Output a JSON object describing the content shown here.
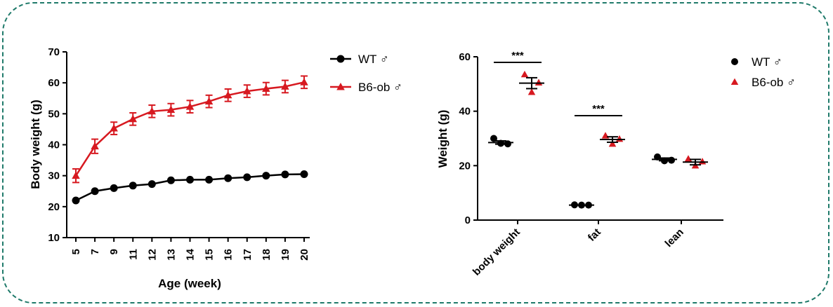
{
  "chart_data": [
    {
      "type": "line",
      "xlabel": "Age (week)",
      "ylabel": "Body weight (g)",
      "categories": [
        "5",
        "7",
        "9",
        "11",
        "12",
        "13",
        "14",
        "15",
        "16",
        "17",
        "18",
        "19",
        "20"
      ],
      "ylim": [
        10,
        70
      ],
      "yticks": [
        "10",
        "20",
        "30",
        "40",
        "50",
        "60",
        "70"
      ],
      "legend_position": "top-right",
      "series": [
        {
          "name": "WT ♂",
          "color": "#000000",
          "marker": "circle",
          "values": [
            22.0,
            25.0,
            26.0,
            26.8,
            27.3,
            28.5,
            28.7,
            28.7,
            29.2,
            29.5,
            30.0,
            30.4,
            30.5
          ],
          "errors": [
            0.5,
            0.6,
            0.6,
            0.6,
            0.6,
            0.6,
            0.6,
            0.6,
            0.6,
            0.6,
            0.6,
            0.6,
            0.6
          ]
        },
        {
          "name": "B6-ob ♂",
          "color": "#d71920",
          "marker": "triangle",
          "values": [
            30.0,
            39.5,
            45.3,
            48.3,
            50.8,
            51.3,
            52.3,
            54.0,
            56.0,
            57.3,
            58.1,
            58.8,
            60.2
          ],
          "errors": [
            2.2,
            2.3,
            2.0,
            2.0,
            2.0,
            2.0,
            2.0,
            2.0,
            2.0,
            2.0,
            2.0,
            2.0,
            2.0
          ]
        }
      ]
    },
    {
      "type": "scatter",
      "xlabel": "",
      "ylabel": "Weight (g)",
      "categories": [
        "body weight",
        "fat",
        "lean"
      ],
      "ylim": [
        0,
        60
      ],
      "yticks": [
        "0",
        "20",
        "40",
        "60"
      ],
      "legend_position": "top-right",
      "series": [
        {
          "name": "WT ♂",
          "color": "#000000",
          "marker": "circle",
          "points": [
            [
              30.0,
              28.2,
              28.0
            ],
            [
              5.6,
              5.5,
              5.5
            ],
            [
              23.2,
              21.8,
              22.0
            ]
          ],
          "mean": [
            28.5,
            5.5,
            22.3
          ],
          "sem": [
            0.6,
            0.1,
            0.5
          ]
        },
        {
          "name": "B6-ob ♂",
          "color": "#d71920",
          "marker": "triangle",
          "points": [
            [
              53.5,
              47.0,
              50.5
            ],
            [
              31.0,
              28.0,
              29.8
            ],
            [
              22.5,
              20.0,
              21.5
            ]
          ],
          "mean": [
            50.3,
            29.6,
            21.3
          ],
          "sem": [
            2.0,
            1.0,
            1.0
          ]
        }
      ],
      "significance": [
        {
          "category": "body weight",
          "label": "***"
        },
        {
          "category": "fat",
          "label": "***"
        }
      ]
    }
  ]
}
